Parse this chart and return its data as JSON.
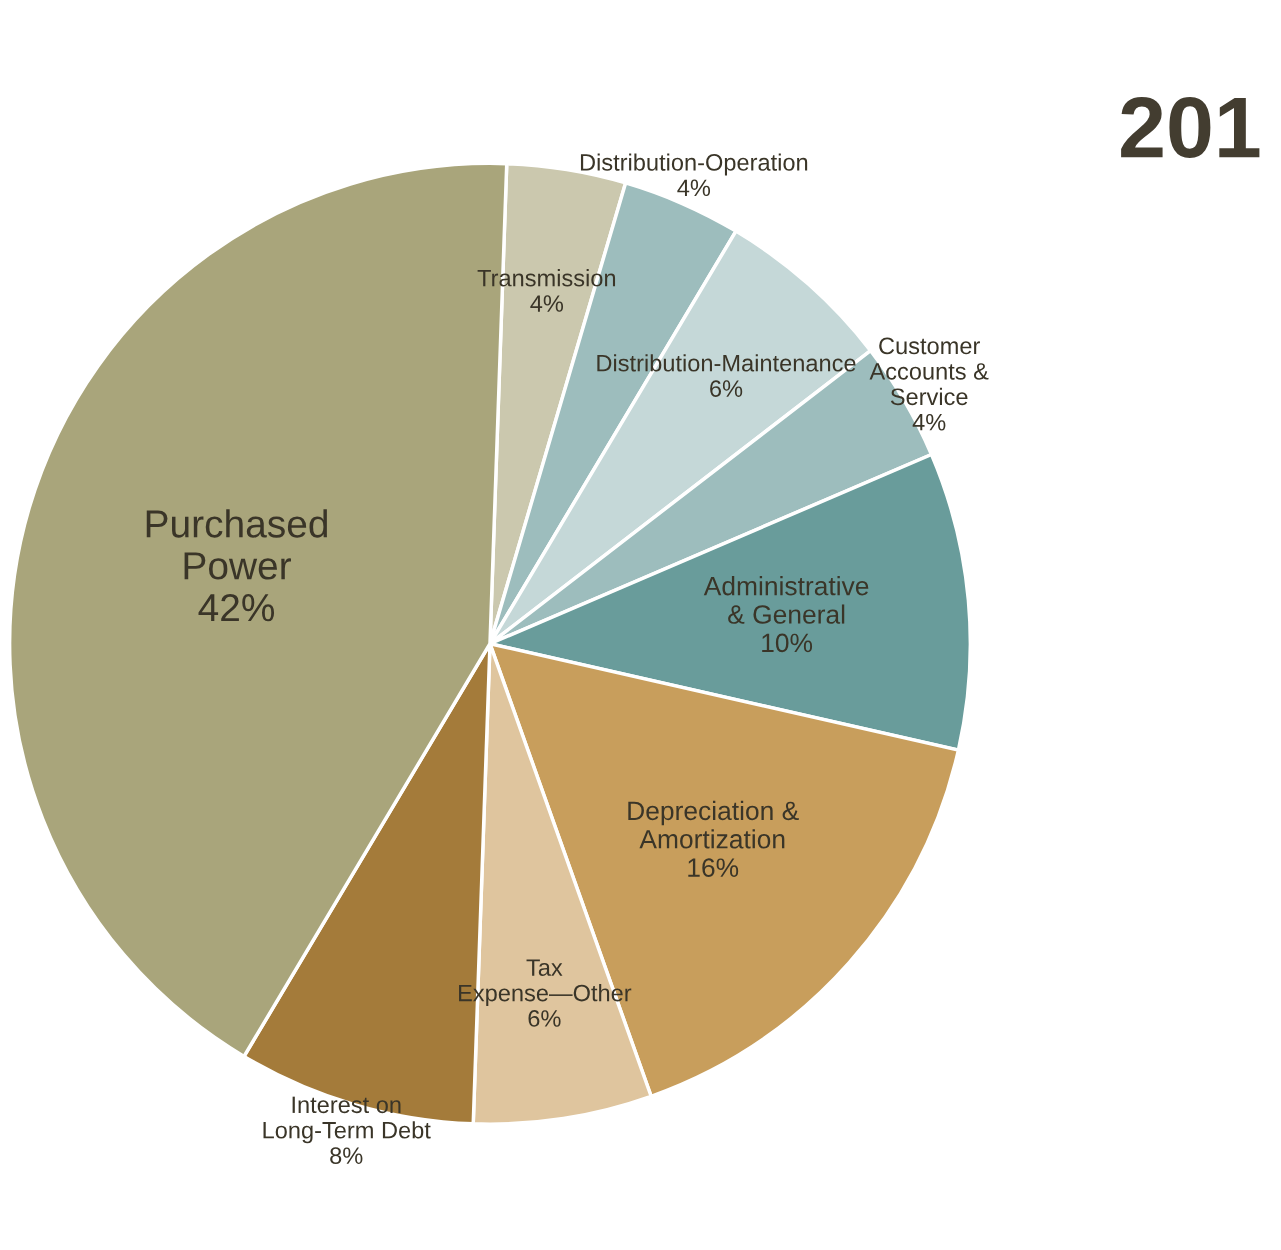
{
  "chart_data": {
    "type": "pie",
    "title": "201",
    "categories": [
      "Transmission",
      "Distribution-Operation",
      "Distribution-Maintenance",
      "Customer Accounts & Service",
      "Administrative & General",
      "Depreciation & Amortization",
      "Tax Expense—Other",
      "Interest on Long-Term Debt",
      "Purchased Power"
    ],
    "values": [
      4,
      4,
      6,
      4,
      10,
      16,
      6,
      8,
      42
    ],
    "value_labels": [
      "4%",
      "4%",
      "6%",
      "4%",
      "10%",
      "16%",
      "6%",
      "8%",
      "42%"
    ],
    "colors": [
      "#cbc8ae",
      "#9dbdbd",
      "#c5d8d8",
      "#9dbdbd",
      "#699c9b",
      "#c89e5c",
      "#dfc59e",
      "#a47b3a",
      "#a9a57b"
    ],
    "legend": false
  }
}
